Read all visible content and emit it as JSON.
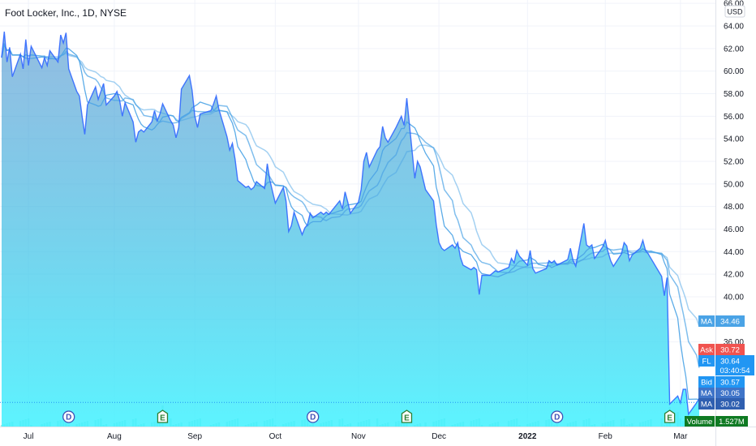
{
  "title": "Foot Locker, Inc., 1D, NYSE",
  "currency": "USD",
  "colors": {
    "line": "#2962ff",
    "fill_top": "#3d88c9",
    "fill_bottom": "#40f2ff",
    "ma": "#4aa3e6",
    "ask": "#f05350",
    "bid": "#2196f3",
    "volume": "#0f7a23"
  },
  "chart_data": {
    "type": "area",
    "ylim": [
      28.5,
      66.3
    ],
    "y_ticks": [
      36,
      38,
      40,
      42,
      44,
      46,
      48,
      50,
      52,
      54,
      56,
      58,
      60,
      62,
      64,
      66
    ],
    "y_tick_labels": [
      "36.00",
      "38.00",
      "40.00",
      "42.00",
      "44.00",
      "46.00",
      "48.00",
      "50.00",
      "52.00",
      "54.00",
      "56.00",
      "58.00",
      "60.00",
      "62.00",
      "64.00",
      "66.00"
    ],
    "x_ticks": [
      {
        "label": "Jul",
        "date": "2021-07-01"
      },
      {
        "label": "Aug",
        "date": "2021-08-02"
      },
      {
        "label": "Sep",
        "date": "2021-09-01"
      },
      {
        "label": "Oct",
        "date": "2021-10-01"
      },
      {
        "label": "Nov",
        "date": "2021-11-01"
      },
      {
        "label": "Dec",
        "date": "2021-12-01"
      },
      {
        "label": "2022",
        "date": "2022-01-03"
      },
      {
        "label": "Feb",
        "date": "2022-02-01"
      },
      {
        "label": "Mar",
        "date": "2022-03-01"
      }
    ],
    "series": [
      {
        "values": [
          [
            "2021-06-21",
            61.2
          ],
          [
            "2021-06-22",
            63.5
          ],
          [
            "2021-06-23",
            60.8
          ],
          [
            "2021-06-24",
            62.1
          ],
          [
            "2021-06-25",
            59.5
          ],
          [
            "2021-06-28",
            61.5
          ],
          [
            "2021-06-29",
            60.2
          ],
          [
            "2021-06-30",
            62.8
          ],
          [
            "2021-07-01",
            60.5
          ],
          [
            "2021-07-02",
            62.2
          ],
          [
            "2021-07-06",
            60.3
          ],
          [
            "2021-07-07",
            61.2
          ],
          [
            "2021-07-08",
            60.5
          ],
          [
            "2021-07-09",
            61.8
          ],
          [
            "2021-07-12",
            60.8
          ],
          [
            "2021-07-13",
            63.2
          ],
          [
            "2021-07-14",
            62.5
          ],
          [
            "2021-07-15",
            63.4
          ],
          [
            "2021-07-16",
            60.2
          ],
          [
            "2021-07-19",
            58.2
          ],
          [
            "2021-07-20",
            57.8
          ],
          [
            "2021-07-21",
            56.0
          ],
          [
            "2021-07-22",
            54.4
          ],
          [
            "2021-07-23",
            57.0
          ],
          [
            "2021-07-26",
            58.6
          ],
          [
            "2021-07-27",
            57.5
          ],
          [
            "2021-07-28",
            58.2
          ],
          [
            "2021-07-29",
            58.9
          ],
          [
            "2021-07-30",
            57.0
          ],
          [
            "2021-08-02",
            57.8
          ],
          [
            "2021-08-03",
            58.2
          ],
          [
            "2021-08-04",
            57.4
          ],
          [
            "2021-08-05",
            56.0
          ],
          [
            "2021-08-06",
            57.2
          ],
          [
            "2021-08-09",
            55.5
          ],
          [
            "2021-08-10",
            53.7
          ],
          [
            "2021-08-11",
            54.6
          ],
          [
            "2021-08-12",
            54.8
          ],
          [
            "2021-08-13",
            54.6
          ],
          [
            "2021-08-16",
            55.5
          ],
          [
            "2021-08-17",
            56.5
          ],
          [
            "2021-08-18",
            55.6
          ],
          [
            "2021-08-19",
            56.2
          ],
          [
            "2021-08-20",
            57.1
          ],
          [
            "2021-08-23",
            55.6
          ],
          [
            "2021-08-24",
            55.2
          ],
          [
            "2021-08-25",
            54.1
          ],
          [
            "2021-08-26",
            55.0
          ],
          [
            "2021-08-27",
            58.4
          ],
          [
            "2021-08-30",
            59.6
          ],
          [
            "2021-08-31",
            58.3
          ],
          [
            "2021-09-01",
            56.0
          ],
          [
            "2021-09-02",
            55.0
          ],
          [
            "2021-09-03",
            56.2
          ],
          [
            "2021-09-07",
            56.5
          ],
          [
            "2021-09-08",
            57.1
          ],
          [
            "2021-09-09",
            57.8
          ],
          [
            "2021-09-10",
            56.6
          ],
          [
            "2021-09-13",
            54.2
          ],
          [
            "2021-09-14",
            53.0
          ],
          [
            "2021-09-15",
            53.6
          ],
          [
            "2021-09-16",
            52.2
          ],
          [
            "2021-09-17",
            50.3
          ],
          [
            "2021-09-20",
            49.7
          ],
          [
            "2021-09-21",
            49.8
          ],
          [
            "2021-09-22",
            49.5
          ],
          [
            "2021-09-23",
            49.7
          ],
          [
            "2021-09-24",
            50.2
          ],
          [
            "2021-09-27",
            49.6
          ],
          [
            "2021-09-28",
            51.8
          ],
          [
            "2021-09-29",
            50.3
          ],
          [
            "2021-09-30",
            49.3
          ],
          [
            "2021-10-01",
            48.3
          ],
          [
            "2021-10-04",
            49.7
          ],
          [
            "2021-10-05",
            48.5
          ],
          [
            "2021-10-06",
            45.8
          ],
          [
            "2021-10-07",
            46.3
          ],
          [
            "2021-10-08",
            47.5
          ],
          [
            "2021-10-11",
            45.5
          ],
          [
            "2021-10-12",
            46.1
          ],
          [
            "2021-10-13",
            46.4
          ],
          [
            "2021-10-14",
            47.4
          ],
          [
            "2021-10-15",
            47.0
          ],
          [
            "2021-10-18",
            47.5
          ],
          [
            "2021-10-19",
            47.3
          ],
          [
            "2021-10-20",
            47.5
          ],
          [
            "2021-10-21",
            47.3
          ],
          [
            "2021-10-22",
            47.6
          ],
          [
            "2021-10-25",
            48.5
          ],
          [
            "2021-10-26",
            47.8
          ],
          [
            "2021-10-27",
            49.3
          ],
          [
            "2021-10-28",
            48.4
          ],
          [
            "2021-10-29",
            47.4
          ],
          [
            "2021-11-01",
            48.4
          ],
          [
            "2021-11-02",
            49.5
          ],
          [
            "2021-11-03",
            52.0
          ],
          [
            "2021-11-04",
            52.8
          ],
          [
            "2021-11-05",
            51.5
          ],
          [
            "2021-11-08",
            53.0
          ],
          [
            "2021-11-09",
            53.3
          ],
          [
            "2021-11-10",
            55.1
          ],
          [
            "2021-11-11",
            54.1
          ],
          [
            "2021-11-12",
            53.7
          ],
          [
            "2021-11-15",
            55.0
          ],
          [
            "2021-11-16",
            55.5
          ],
          [
            "2021-11-17",
            56.0
          ],
          [
            "2021-11-18",
            55.2
          ],
          [
            "2021-11-19",
            57.6
          ],
          [
            "2021-11-22",
            50.5
          ],
          [
            "2021-11-23",
            52.0
          ],
          [
            "2021-11-24",
            51.5
          ],
          [
            "2021-11-26",
            49.5
          ],
          [
            "2021-11-29",
            48.5
          ],
          [
            "2021-11-30",
            46.4
          ],
          [
            "2021-12-01",
            44.8
          ],
          [
            "2021-12-02",
            44.3
          ],
          [
            "2021-12-03",
            44.1
          ],
          [
            "2021-12-06",
            44.6
          ],
          [
            "2021-12-07",
            44.3
          ],
          [
            "2021-12-08",
            44.8
          ],
          [
            "2021-12-09",
            43.5
          ],
          [
            "2021-12-10",
            42.8
          ],
          [
            "2021-12-13",
            42.4
          ],
          [
            "2021-12-14",
            42.6
          ],
          [
            "2021-12-15",
            42.4
          ],
          [
            "2021-12-16",
            40.2
          ],
          [
            "2021-12-17",
            41.9
          ],
          [
            "2021-12-20",
            41.9
          ],
          [
            "2021-12-21",
            42.1
          ],
          [
            "2021-12-22",
            42.3
          ],
          [
            "2021-12-23",
            42.2
          ],
          [
            "2021-12-27",
            42.6
          ],
          [
            "2021-12-28",
            43.4
          ],
          [
            "2021-12-29",
            43.0
          ],
          [
            "2021-12-30",
            44.1
          ],
          [
            "2021-12-31",
            43.6
          ],
          [
            "2022-01-03",
            42.8
          ],
          [
            "2022-01-04",
            44.1
          ],
          [
            "2022-01-05",
            42.5
          ],
          [
            "2022-01-06",
            42.1
          ],
          [
            "2022-01-07",
            42.2
          ],
          [
            "2022-01-10",
            42.5
          ],
          [
            "2022-01-11",
            43.2
          ],
          [
            "2022-01-12",
            43.0
          ],
          [
            "2022-01-13",
            43.2
          ],
          [
            "2022-01-14",
            42.8
          ],
          [
            "2022-01-18",
            43.3
          ],
          [
            "2022-01-19",
            44.3
          ],
          [
            "2022-01-20",
            43.2
          ],
          [
            "2022-01-21",
            42.7
          ],
          [
            "2022-01-24",
            46.5
          ],
          [
            "2022-01-25",
            44.6
          ],
          [
            "2022-01-26",
            44.4
          ],
          [
            "2022-01-27",
            44.6
          ],
          [
            "2022-01-28",
            43.4
          ],
          [
            "2022-01-31",
            44.4
          ],
          [
            "2022-02-01",
            45.0
          ],
          [
            "2022-02-02",
            44.0
          ],
          [
            "2022-02-03",
            43.2
          ],
          [
            "2022-02-04",
            42.7
          ],
          [
            "2022-02-07",
            43.8
          ],
          [
            "2022-02-08",
            44.8
          ],
          [
            "2022-02-09",
            44.5
          ],
          [
            "2022-02-10",
            43.2
          ],
          [
            "2022-02-11",
            43.7
          ],
          [
            "2022-02-14",
            44.3
          ],
          [
            "2022-02-15",
            45.0
          ],
          [
            "2022-02-16",
            44.1
          ],
          [
            "2022-02-17",
            43.8
          ],
          [
            "2022-02-18",
            43.4
          ],
          [
            "2022-02-22",
            41.8
          ],
          [
            "2022-02-23",
            40.1
          ],
          [
            "2022-02-24",
            41.7
          ],
          [
            "2022-02-25",
            30.5
          ],
          [
            "2022-02-28",
            31.2
          ],
          [
            "2022-03-01",
            30.6
          ],
          [
            "2022-03-02",
            31.8
          ],
          [
            "2022-03-03",
            31.8
          ],
          [
            "2022-03-04",
            29.6
          ],
          [
            "2022-03-07",
            30.6
          ],
          [
            "2022-03-08",
            31.0
          ]
        ]
      }
    ],
    "moving_average_labels": [
      "MA",
      "MA",
      "MA"
    ]
  },
  "price_tags": {
    "ma_top": {
      "label": "MA",
      "value": "34.46",
      "price": 34.46
    },
    "ask": {
      "label": "Ask",
      "value": "30.72",
      "price": 30.72
    },
    "last": {
      "label": "FL",
      "value": "30.64",
      "price": 30.64,
      "countdown": "03:40:54"
    },
    "bid": {
      "label": "Bid",
      "value": "30.57"
    },
    "ma_mid": {
      "label": "MA",
      "value": "30.05"
    },
    "ma_low": {
      "label": "MA",
      "value": "30.02"
    },
    "volume": {
      "label": "Volume",
      "value": "1.527M"
    }
  },
  "events": [
    {
      "type": "dividend",
      "letter": "D",
      "date": "2021-07-16"
    },
    {
      "type": "earnings",
      "letter": "E",
      "date": "2021-08-20"
    },
    {
      "type": "dividend",
      "letter": "D",
      "date": "2021-10-15"
    },
    {
      "type": "earnings",
      "letter": "E",
      "date": "2021-11-19"
    },
    {
      "type": "dividend",
      "letter": "D",
      "date": "2022-01-14"
    },
    {
      "type": "earnings",
      "letter": "E",
      "date": "2022-02-25"
    }
  ]
}
